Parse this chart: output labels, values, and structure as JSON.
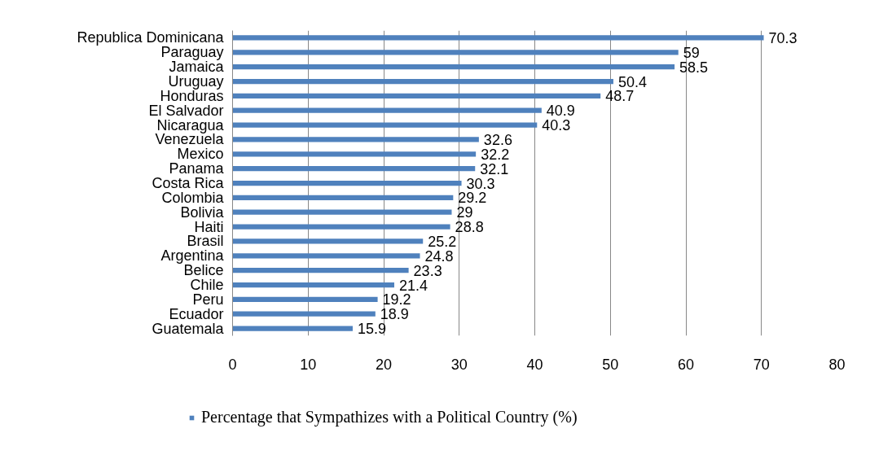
{
  "chart_data": {
    "type": "bar",
    "orientation": "horizontal",
    "categories": [
      "Republica Dominicana",
      "Paraguay",
      "Jamaica",
      "Uruguay",
      "Honduras",
      "El Salvador",
      "Nicaragua",
      "Venezuela",
      "Mexico",
      "Panama",
      "Costa Rica",
      "Colombia",
      "Bolivia",
      "Haiti",
      "Brasil",
      "Argentina",
      "Belice",
      "Chile",
      "Peru",
      "Ecuador",
      "Guatemala"
    ],
    "series": [
      {
        "name": "Percentage that Sympathizes with a Political Country (%)",
        "color": "#4f81bd",
        "values": [
          70.3,
          59,
          58.5,
          50.4,
          48.7,
          40.9,
          40.3,
          32.6,
          32.2,
          32.1,
          30.3,
          29.2,
          29,
          28.8,
          25.2,
          24.8,
          23.3,
          21.4,
          19.2,
          18.9,
          15.9
        ]
      }
    ],
    "xlim": [
      0,
      80
    ],
    "xticks": [
      0,
      10,
      20,
      30,
      40,
      50,
      60,
      70,
      80
    ],
    "grid": "x",
    "legend": "bottom",
    "data_labels": true
  }
}
